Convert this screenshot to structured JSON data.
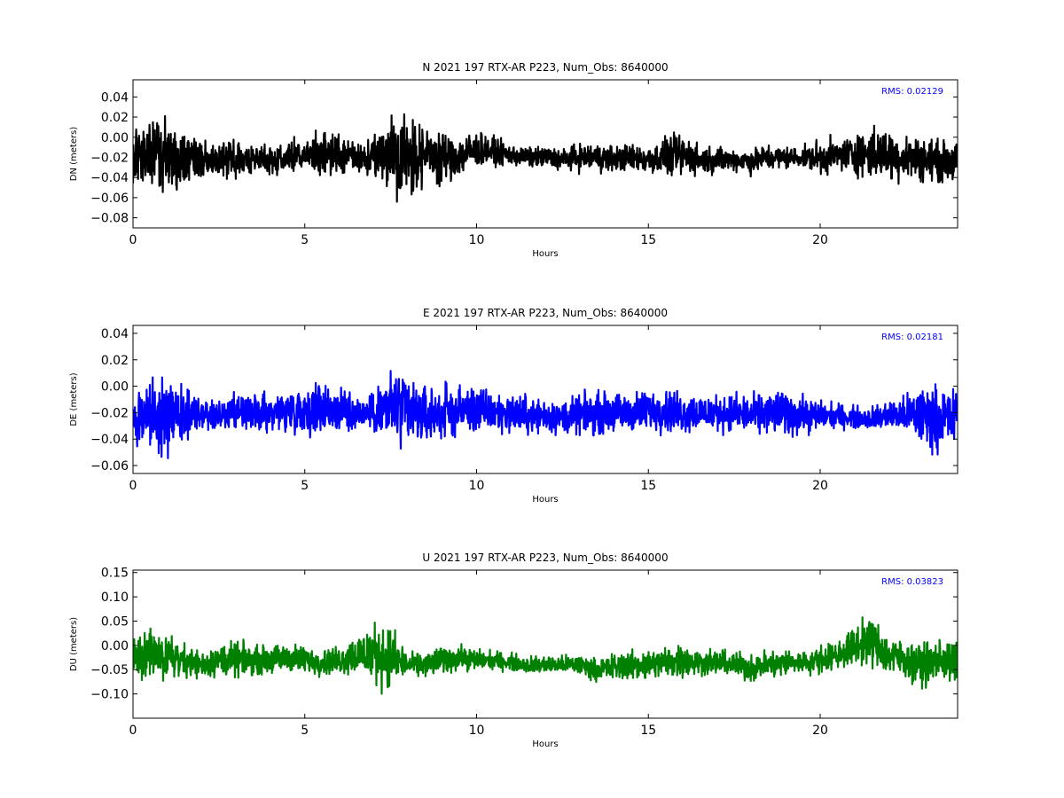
{
  "chart_data": [
    {
      "type": "line",
      "title": "N 2021 197 RTX-AR  P223, Num_Obs: 8640000",
      "xlabel": "Hours",
      "ylabel": "DN (meters)",
      "xlim": [
        0,
        24
      ],
      "ylim": [
        -0.09,
        0.057
      ],
      "xticks": [
        0,
        5,
        10,
        15,
        20
      ],
      "yticks": [
        -0.08,
        -0.06,
        -0.04,
        -0.02,
        0.0,
        0.02,
        0.04
      ],
      "ytick_labels": [
        "−0.08",
        "−0.06",
        "−0.04",
        "−0.02",
        "0.00",
        "0.02",
        "0.04"
      ],
      "xtick_labels": [
        "0",
        "5",
        "10",
        "15",
        "20"
      ],
      "color": "#000000",
      "rms_text": "RMS:  0.02129",
      "series": [
        {
          "x": [
            0,
            0.5,
            1,
            1.5,
            2,
            2.5,
            3,
            3.5,
            4,
            4.5,
            5,
            5.5,
            6,
            6.5,
            7,
            7.5,
            8,
            8.5,
            9,
            9.5,
            10,
            10.5,
            11,
            11.5,
            12,
            12.5,
            13,
            13.5,
            14,
            14.5,
            15,
            15.5,
            16,
            16.5,
            17,
            17.5,
            18,
            18.5,
            19,
            19.5,
            20,
            20.5,
            21,
            21.5,
            22,
            22.5,
            23,
            23.5,
            24
          ],
          "center": [
            -0.02,
            -0.018,
            -0.018,
            -0.02,
            -0.022,
            -0.022,
            -0.022,
            -0.021,
            -0.022,
            -0.02,
            -0.018,
            -0.017,
            -0.018,
            -0.02,
            -0.02,
            -0.014,
            -0.018,
            -0.018,
            -0.019,
            -0.018,
            -0.012,
            -0.014,
            -0.018,
            -0.02,
            -0.02,
            -0.022,
            -0.02,
            -0.02,
            -0.021,
            -0.02,
            -0.022,
            -0.02,
            -0.018,
            -0.022,
            -0.022,
            -0.022,
            -0.024,
            -0.02,
            -0.02,
            -0.02,
            -0.02,
            -0.018,
            -0.016,
            -0.016,
            -0.018,
            -0.02,
            -0.022,
            -0.024,
            -0.024
          ],
          "amplitude": [
            0.03,
            0.04,
            0.05,
            0.04,
            0.025,
            0.02,
            0.025,
            0.02,
            0.02,
            0.022,
            0.025,
            0.03,
            0.03,
            0.02,
            0.025,
            0.055,
            0.055,
            0.04,
            0.035,
            0.03,
            0.025,
            0.018,
            0.015,
            0.013,
            0.015,
            0.015,
            0.018,
            0.02,
            0.018,
            0.018,
            0.02,
            0.025,
            0.03,
            0.02,
            0.018,
            0.015,
            0.018,
            0.018,
            0.015,
            0.013,
            0.025,
            0.02,
            0.028,
            0.035,
            0.035,
            0.03,
            0.03,
            0.028,
            0.025
          ]
        }
      ]
    },
    {
      "type": "line",
      "title": "E 2021 197 RTX-AR  P223, Num_Obs: 8640000",
      "xlabel": "Hours",
      "ylabel": "DE (meters)",
      "xlim": [
        0,
        24
      ],
      "ylim": [
        -0.066,
        0.046
      ],
      "xticks": [
        0,
        5,
        10,
        15,
        20
      ],
      "yticks": [
        -0.06,
        -0.04,
        -0.02,
        0.0,
        0.02,
        0.04
      ],
      "ytick_labels": [
        "−0.06",
        "−0.04",
        "−0.02",
        "0.00",
        "0.02",
        "0.04"
      ],
      "xtick_labels": [
        "0",
        "5",
        "10",
        "15",
        "20"
      ],
      "color": "#0000ff",
      "rms_text": "RMS:  0.02181",
      "series": [
        {
          "x": [
            0,
            0.5,
            1,
            1.5,
            2,
            2.5,
            3,
            3.5,
            4,
            4.5,
            5,
            5.5,
            6,
            6.5,
            7,
            7.5,
            8,
            8.5,
            9,
            9.5,
            10,
            10.5,
            11,
            11.5,
            12,
            12.5,
            13,
            13.5,
            14,
            14.5,
            15,
            15.5,
            16,
            16.5,
            17,
            17.5,
            18,
            18.5,
            19,
            19.5,
            20,
            20.5,
            21,
            21.5,
            22,
            22.5,
            23,
            23.5,
            24
          ],
          "center": [
            -0.025,
            -0.022,
            -0.022,
            -0.022,
            -0.022,
            -0.022,
            -0.022,
            -0.02,
            -0.02,
            -0.018,
            -0.018,
            -0.016,
            -0.018,
            -0.02,
            -0.02,
            -0.016,
            -0.02,
            -0.022,
            -0.02,
            -0.018,
            -0.018,
            -0.02,
            -0.02,
            -0.022,
            -0.022,
            -0.024,
            -0.022,
            -0.02,
            -0.02,
            -0.02,
            -0.018,
            -0.018,
            -0.02,
            -0.02,
            -0.02,
            -0.02,
            -0.022,
            -0.02,
            -0.02,
            -0.022,
            -0.022,
            -0.022,
            -0.024,
            -0.024,
            -0.022,
            -0.022,
            -0.022,
            -0.024,
            -0.024
          ],
          "amplitude": [
            0.025,
            0.032,
            0.04,
            0.03,
            0.015,
            0.015,
            0.02,
            0.02,
            0.02,
            0.022,
            0.025,
            0.03,
            0.025,
            0.015,
            0.022,
            0.045,
            0.04,
            0.03,
            0.028,
            0.025,
            0.025,
            0.022,
            0.02,
            0.02,
            0.018,
            0.018,
            0.02,
            0.022,
            0.02,
            0.02,
            0.022,
            0.022,
            0.022,
            0.02,
            0.018,
            0.02,
            0.02,
            0.022,
            0.024,
            0.02,
            0.015,
            0.012,
            0.012,
            0.012,
            0.015,
            0.02,
            0.035,
            0.032,
            0.03
          ]
        }
      ]
    },
    {
      "type": "line",
      "title": "U 2021 197 RTX-AR  P223, Num_Obs: 8640000",
      "xlabel": "Hours",
      "ylabel": "DU (meters)",
      "xlim": [
        0,
        24
      ],
      "ylim": [
        -0.15,
        0.155
      ],
      "xticks": [
        0,
        5,
        10,
        15,
        20
      ],
      "yticks": [
        -0.1,
        -0.05,
        0.0,
        0.05,
        0.1,
        0.15
      ],
      "ytick_labels": [
        "−0.10",
        "−0.05",
        "0.00",
        "0.05",
        "0.10",
        "0.15"
      ],
      "xtick_labels": [
        "0",
        "5",
        "10",
        "15",
        "20"
      ],
      "color": "#008000",
      "rms_text": "RMS:  0.03823",
      "series": [
        {
          "x": [
            0,
            0.5,
            1,
            1.5,
            2,
            2.5,
            3,
            3.5,
            4,
            4.5,
            5,
            5.5,
            6,
            6.5,
            7,
            7.5,
            8,
            8.5,
            9,
            9.5,
            10,
            10.5,
            11,
            11.5,
            12,
            12.5,
            13,
            13.5,
            14,
            14.5,
            15,
            15.5,
            16,
            16.5,
            17,
            17.5,
            18,
            18.5,
            19,
            19.5,
            20,
            20.5,
            21,
            21.5,
            22,
            22.5,
            23,
            23.5,
            24
          ],
          "center": [
            -0.03,
            -0.02,
            -0.02,
            -0.03,
            -0.04,
            -0.03,
            -0.03,
            -0.03,
            -0.03,
            -0.025,
            -0.03,
            -0.035,
            -0.03,
            -0.02,
            -0.015,
            -0.025,
            -0.04,
            -0.04,
            -0.03,
            -0.025,
            -0.03,
            -0.03,
            -0.035,
            -0.04,
            -0.04,
            -0.04,
            -0.04,
            -0.05,
            -0.045,
            -0.04,
            -0.04,
            -0.035,
            -0.03,
            -0.035,
            -0.035,
            -0.04,
            -0.045,
            -0.04,
            -0.035,
            -0.035,
            -0.03,
            -0.02,
            0.0,
            0.01,
            -0.02,
            -0.03,
            -0.04,
            -0.03,
            -0.04
          ],
          "amplitude": [
            0.05,
            0.07,
            0.06,
            0.05,
            0.04,
            0.045,
            0.05,
            0.04,
            0.04,
            0.04,
            0.04,
            0.035,
            0.04,
            0.06,
            0.085,
            0.09,
            0.03,
            0.035,
            0.04,
            0.035,
            0.03,
            0.025,
            0.025,
            0.025,
            0.025,
            0.025,
            0.03,
            0.03,
            0.04,
            0.04,
            0.045,
            0.045,
            0.05,
            0.035,
            0.035,
            0.035,
            0.04,
            0.04,
            0.04,
            0.03,
            0.04,
            0.04,
            0.055,
            0.07,
            0.06,
            0.05,
            0.06,
            0.06,
            0.06
          ]
        }
      ]
    }
  ]
}
